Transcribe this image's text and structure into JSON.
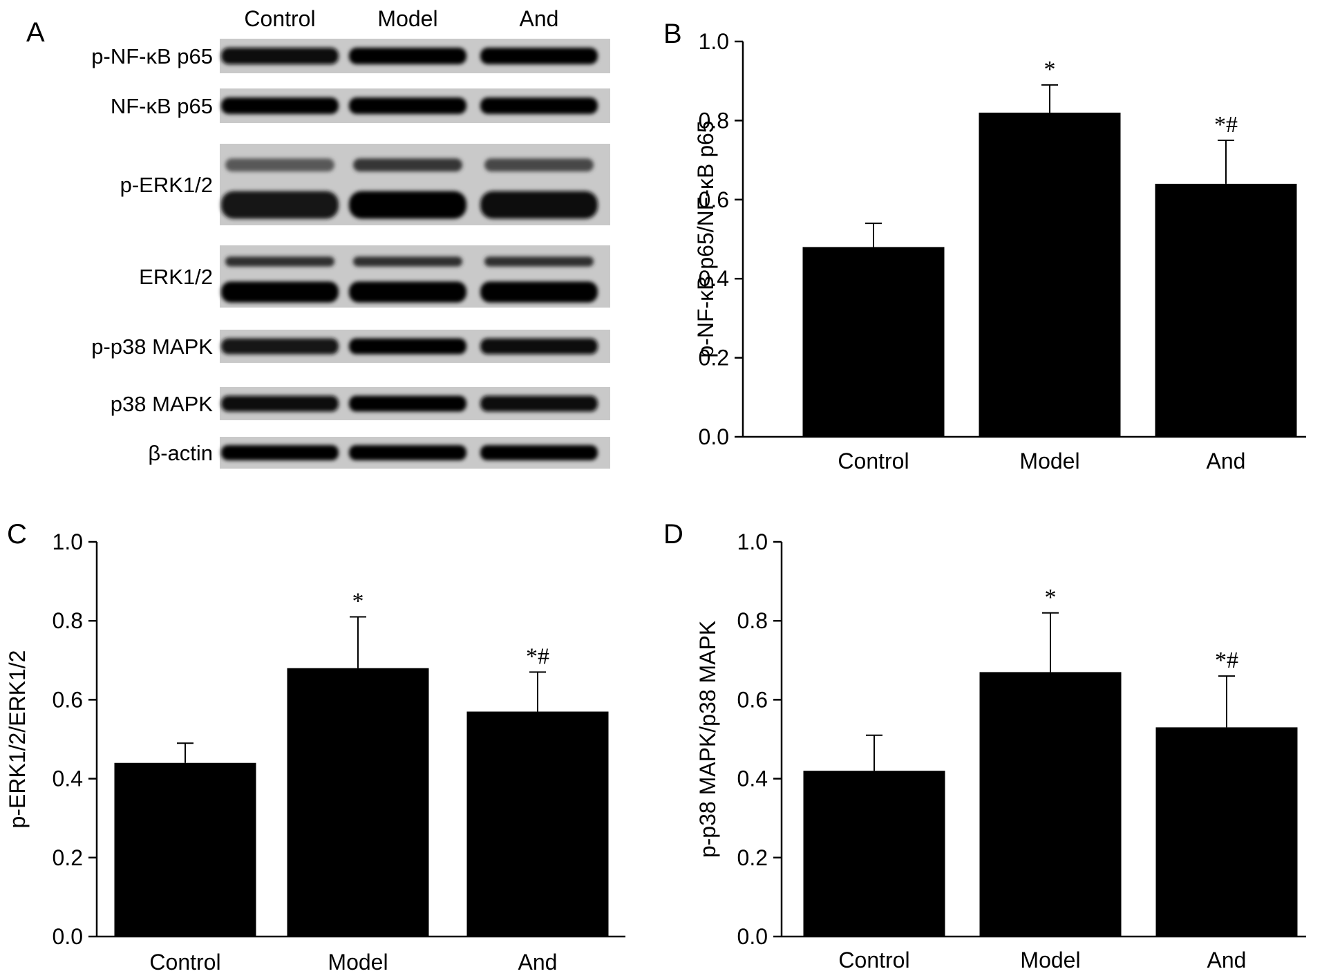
{
  "figure": {
    "panels": [
      "A",
      "B",
      "C",
      "D"
    ]
  },
  "western_blot": {
    "letter": "A",
    "lanes": [
      "Control",
      "Model",
      "And"
    ],
    "rows": [
      {
        "label": "p-NF-κB p65",
        "bands": 1,
        "intensity": [
          0.8,
          1.0,
          0.9
        ]
      },
      {
        "label": "NF-κB p65",
        "bands": 1,
        "intensity": [
          0.95,
          0.9,
          0.92
        ]
      },
      {
        "label": "p-ERK1/2",
        "bands": 2,
        "intensity": [
          0.6,
          0.9,
          0.75
        ]
      },
      {
        "label": "ERK1/2",
        "bands": 2,
        "intensity": [
          0.95,
          0.95,
          0.95
        ]
      },
      {
        "label": "p-p38 MAPK",
        "bands": 1,
        "intensity": [
          0.7,
          0.9,
          0.8
        ]
      },
      {
        "label": "p38 MAPK",
        "bands": 1,
        "intensity": [
          0.85,
          0.9,
          0.85
        ]
      },
      {
        "label": "β-actin",
        "bands": 1,
        "intensity": [
          0.95,
          0.95,
          0.95
        ]
      }
    ]
  },
  "chart_data": [
    {
      "letter": "B",
      "type": "bar",
      "categories": [
        "Control",
        "Model",
        "And"
      ],
      "values": [
        0.48,
        0.82,
        0.64
      ],
      "errors": [
        0.06,
        0.07,
        0.11
      ],
      "significance": [
        "",
        "*",
        "*#"
      ],
      "ylabel": "p-NF-κB p65/NF-κB p65",
      "ylim": [
        0,
        1.0
      ],
      "yticks": [
        "0.0",
        "0.2",
        "0.4",
        "0.6",
        "0.8",
        "1.0"
      ],
      "grid": false,
      "bar_color": "#000000"
    },
    {
      "letter": "C",
      "type": "bar",
      "categories": [
        "Control",
        "Model",
        "And"
      ],
      "values": [
        0.44,
        0.68,
        0.57
      ],
      "errors": [
        0.05,
        0.13,
        0.1
      ],
      "significance": [
        "",
        "*",
        "*#"
      ],
      "ylabel": "p-ERK1/2/ERK1/2",
      "ylim": [
        0,
        1.0
      ],
      "yticks": [
        "0.0",
        "0.2",
        "0.4",
        "0.6",
        "0.8",
        "1.0"
      ],
      "grid": false,
      "bar_color": "#000000"
    },
    {
      "letter": "D",
      "type": "bar",
      "categories": [
        "Control",
        "Model",
        "And"
      ],
      "values": [
        0.42,
        0.67,
        0.53
      ],
      "errors": [
        0.09,
        0.15,
        0.13
      ],
      "significance": [
        "",
        "*",
        "*#"
      ],
      "ylabel": "p-p38 MAPK/p38 MAPK",
      "ylim": [
        0,
        1.0
      ],
      "yticks": [
        "0.0",
        "0.2",
        "0.4",
        "0.6",
        "0.8",
        "1.0"
      ],
      "grid": false,
      "bar_color": "#000000"
    }
  ]
}
